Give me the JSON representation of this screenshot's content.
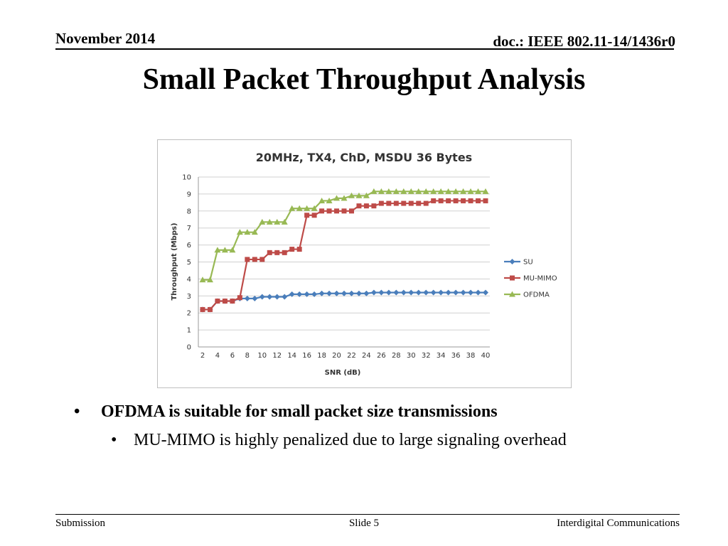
{
  "header": {
    "date": "November 2014",
    "doc": "doc.: IEEE 802.11-14/1436r0"
  },
  "slide_title": "Small Packet Throughput Analysis",
  "bullets": {
    "level1": "OFDMA is suitable for small packet size transmissions",
    "level2": "MU-MIMO is highly penalized due to large signaling overhead",
    "marker": "•"
  },
  "footer": {
    "left": "Submission",
    "center": "Slide 5",
    "right": "Interdigital Communications"
  },
  "chart_data": {
    "type": "line",
    "title": "20MHz, TX4, ChD, MSDU 36 Bytes",
    "xlabel": "SNR (dB)",
    "ylabel": "Throughput (Mbps)",
    "ylim": [
      0,
      10
    ],
    "yticks": [
      "0",
      "1",
      "2",
      "3",
      "4",
      "5",
      "6",
      "7",
      "8",
      "9",
      "10"
    ],
    "x": [
      2,
      3,
      4,
      5,
      6,
      7,
      8,
      9,
      10,
      11,
      12,
      13,
      14,
      15,
      16,
      17,
      18,
      19,
      20,
      21,
      22,
      23,
      24,
      25,
      26,
      27,
      28,
      29,
      30,
      31,
      32,
      33,
      34,
      35,
      36,
      37,
      38,
      39,
      40
    ],
    "xtick_labels": [
      "2",
      "4",
      "6",
      "8",
      "10",
      "12",
      "14",
      "16",
      "18",
      "20",
      "22",
      "24",
      "26",
      "28",
      "30",
      "32",
      "34",
      "36",
      "38",
      "40"
    ],
    "grid": "horizontal",
    "legend": "right",
    "series": [
      {
        "name": "SU",
        "color": "#4a7ebb",
        "marker": "diamond",
        "values": [
          2.2,
          2.2,
          2.7,
          2.7,
          2.7,
          2.85,
          2.85,
          2.85,
          2.95,
          2.95,
          2.95,
          2.95,
          3.1,
          3.1,
          3.1,
          3.1,
          3.15,
          3.15,
          3.15,
          3.15,
          3.15,
          3.15,
          3.15,
          3.2,
          3.2,
          3.2,
          3.2,
          3.2,
          3.2,
          3.2,
          3.2,
          3.2,
          3.2,
          3.2,
          3.2,
          3.2,
          3.2,
          3.2,
          3.2
        ]
      },
      {
        "name": "MU-MIMO",
        "color": "#be4b48",
        "marker": "square",
        "values": [
          2.2,
          2.2,
          2.7,
          2.7,
          2.7,
          2.9,
          5.15,
          5.15,
          5.15,
          5.55,
          5.55,
          5.55,
          5.75,
          5.75,
          7.75,
          7.75,
          8.0,
          8.0,
          8.0,
          8.0,
          8.0,
          8.3,
          8.3,
          8.3,
          8.45,
          8.45,
          8.45,
          8.45,
          8.45,
          8.45,
          8.45,
          8.6,
          8.6,
          8.6,
          8.6,
          8.6,
          8.6,
          8.6,
          8.6
        ]
      },
      {
        "name": "OFDMA",
        "color": "#98b954",
        "marker": "triangle",
        "values": [
          3.95,
          3.95,
          5.7,
          5.7,
          5.7,
          6.75,
          6.75,
          6.75,
          7.35,
          7.35,
          7.35,
          7.35,
          8.15,
          8.15,
          8.15,
          8.15,
          8.6,
          8.6,
          8.75,
          8.75,
          8.9,
          8.9,
          8.9,
          9.15,
          9.15,
          9.15,
          9.15,
          9.15,
          9.15,
          9.15,
          9.15,
          9.15,
          9.15,
          9.15,
          9.15,
          9.15,
          9.15,
          9.15,
          9.15
        ]
      }
    ]
  }
}
